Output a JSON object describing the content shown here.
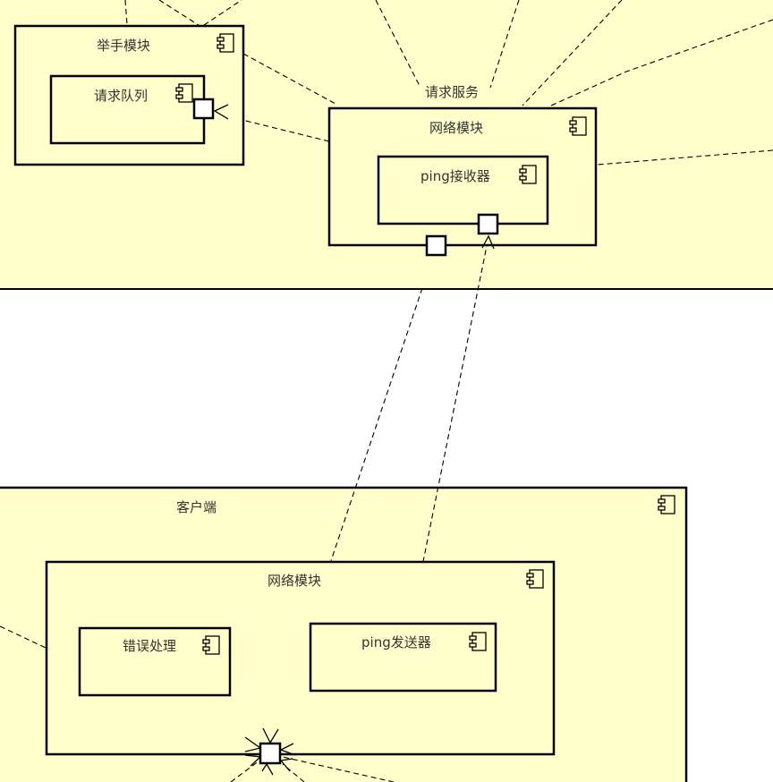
{
  "diagram": {
    "server_node": {
      "label": "请求服务"
    },
    "hand_module": {
      "label": "举手模块"
    },
    "request_queue": {
      "label": "请求队列"
    },
    "server_network_module": {
      "label": "网络模块"
    },
    "ping_receiver": {
      "label": "ping接收器"
    },
    "client_node": {
      "label": "客户端"
    },
    "client_network_module": {
      "label": "网络模块"
    },
    "error_handler": {
      "label": "错误处理"
    },
    "ping_sender": {
      "label": "ping发送器"
    }
  },
  "colors": {
    "node_fill": "#ffffcc",
    "stroke": "#000000",
    "text": "#333333",
    "background": "#ffffff"
  },
  "icons": {
    "component": "uml-component-icon"
  }
}
